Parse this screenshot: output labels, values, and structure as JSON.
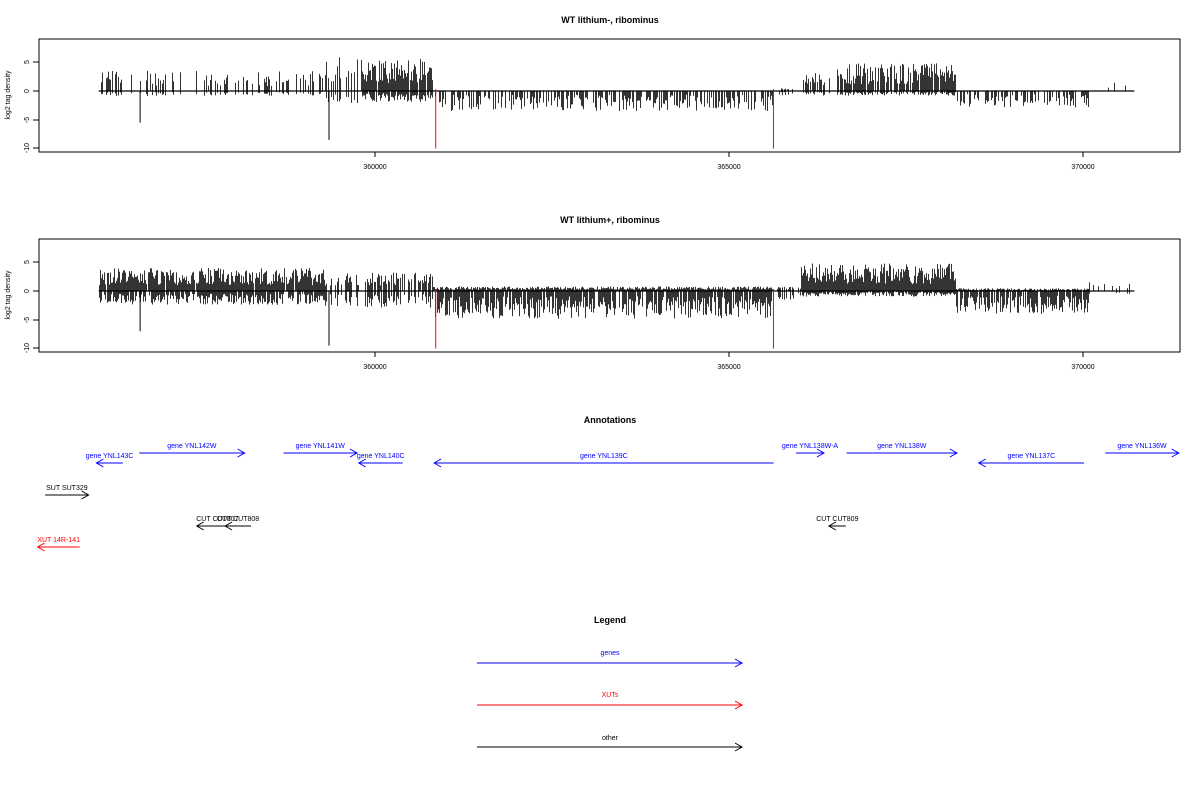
{
  "panels": [
    {
      "title": "WT lithium-, ribominus",
      "ylabel": "log2 tag density",
      "yticks": [
        "-10",
        "-5",
        "0",
        "5"
      ],
      "xticks": [
        "360000",
        "365000",
        "370000"
      ]
    },
    {
      "title": "WT lithium+, ribominus",
      "ylabel": "log2 tag density",
      "yticks": [
        "-10",
        "-5",
        "0",
        "5"
      ],
      "xticks": [
        "360000",
        "365000",
        "370000"
      ]
    }
  ],
  "annotations": {
    "title": "Annotations",
    "features": [
      {
        "label": "gene YNL143C",
        "class": "gene",
        "strand": "-",
        "start": 356068,
        "end": 356444
      },
      {
        "label": "gene YNL142W",
        "class": "gene",
        "strand": "+",
        "start": 356677,
        "end": 358178
      },
      {
        "label": "gene YNL141W",
        "class": "gene",
        "strand": "+",
        "start": 358733,
        "end": 359779
      },
      {
        "label": "gene YNL140C",
        "class": "gene",
        "strand": "-",
        "start": 359804,
        "end": 360429
      },
      {
        "label": "gene YNL139C",
        "class": "gene",
        "strand": "-",
        "start": 360878,
        "end": 365712
      },
      {
        "label": "gene YNL138W-A",
        "class": "gene",
        "strand": "+",
        "start": 366032,
        "end": 366429
      },
      {
        "label": "gene YNL138W",
        "class": "gene",
        "strand": "+",
        "start": 366751,
        "end": 368323
      },
      {
        "label": "gene YNL137C",
        "class": "gene",
        "strand": "-",
        "start": 368634,
        "end": 370133
      },
      {
        "label": "gene YNL136W",
        "class": "gene",
        "strand": "+",
        "start": 370436,
        "end": 371482
      },
      {
        "label": "SUT SUT329",
        "class": "other",
        "strand": "+",
        "start": 355338,
        "end": 355956
      },
      {
        "label": "CUT CUT807",
        "class": "other",
        "strand": "-",
        "start": 357496,
        "end": 358085
      },
      {
        "label": "CUT CUT808",
        "class": "other",
        "strand": "-",
        "start": 357900,
        "end": 358270
      },
      {
        "label": "CUT CUT809",
        "class": "other",
        "strand": "-",
        "start": 366500,
        "end": 366740
      },
      {
        "label": "XUT 14R-141",
        "class": "xut",
        "strand": "-",
        "start": 355230,
        "end": 355830
      }
    ]
  },
  "legend": {
    "title": "Legend",
    "items": [
      {
        "label": "genes",
        "color": "#0000ff"
      },
      {
        "label": "XUTs",
        "color": "#ff0000"
      },
      {
        "label": "other",
        "color": "#000000"
      }
    ]
  },
  "colors": {
    "gene": "#0000ff",
    "xut": "#ff0000",
    "other": "#000000",
    "peak": "#ff0000"
  },
  "chart_data": [
    {
      "type": "bar",
      "title": "WT lithium-, ribominus",
      "xlabel": "",
      "ylabel": "log2 tag density",
      "xlim": [
        355250,
        371500
      ],
      "ylim": [
        -10,
        8.5
      ],
      "data_range": [
        356100,
        370850
      ],
      "red_peaks": [
        {
          "x": 360900,
          "y": -10
        },
        {
          "x": 365710,
          "y": -10
        }
      ],
      "segments": [
        {
          "from": 356100,
          "to": 357400,
          "density": 0.25,
          "pos_mean": 2.2,
          "pos_max": 3.5,
          "neg_mean": 0.6,
          "neg_max": 2.0
        },
        {
          "from": 357400,
          "to": 359300,
          "density": 0.35,
          "pos_mean": 2.2,
          "pos_max": 3.8,
          "neg_mean": 0.5,
          "neg_max": 1.5
        },
        {
          "from": 359300,
          "to": 359850,
          "density": 0.45,
          "pos_mean": 4.0,
          "pos_max": 6.5,
          "neg_mean": 1.5,
          "neg_max": 4.0
        },
        {
          "from": 359850,
          "to": 360850,
          "density": 0.95,
          "pos_mean": 3.5,
          "pos_max": 6.0,
          "neg_mean": 1.2,
          "neg_max": 3.0
        },
        {
          "from": 360850,
          "to": 365700,
          "density": 0.7,
          "pos_mean": 0.0,
          "pos_max": 0.0,
          "neg_mean": 2.2,
          "neg_max": 4.5
        },
        {
          "from": 365700,
          "to": 366100,
          "density": 0.3,
          "pos_mean": 0.3,
          "pos_max": 1.0,
          "neg_mean": 0.5,
          "neg_max": 1.5
        },
        {
          "from": 366100,
          "to": 366600,
          "density": 0.4,
          "pos_mean": 2.0,
          "pos_max": 3.5,
          "neg_mean": 0.5,
          "neg_max": 1.5
        },
        {
          "from": 366600,
          "to": 368300,
          "density": 0.75,
          "pos_mean": 3.0,
          "pos_max": 6.0,
          "neg_mean": 0.5,
          "neg_max": 1.5
        },
        {
          "from": 368300,
          "to": 370200,
          "density": 0.6,
          "pos_mean": 0.0,
          "pos_max": 0.0,
          "neg_mean": 1.8,
          "neg_max": 3.5
        },
        {
          "from": 370200,
          "to": 370850,
          "density": 0.05,
          "pos_mean": 1.0,
          "pos_max": 2.0,
          "neg_mean": 0.0,
          "neg_max": 0.0
        }
      ],
      "spikes": [
        {
          "x": 359380,
          "y": -8.5
        },
        {
          "x": 356690,
          "y": -5.5
        }
      ]
    },
    {
      "type": "bar",
      "title": "WT lithium+, ribominus",
      "xlabel": "",
      "ylabel": "log2 tag density",
      "xlim": [
        355250,
        371500
      ],
      "ylim": [
        -10,
        8.5
      ],
      "data_range": [
        356100,
        370850
      ],
      "red_peaks": [
        {
          "x": 360900,
          "y": -10
        },
        {
          "x": 365710,
          "y": -10
        }
      ],
      "segments": [
        {
          "from": 356100,
          "to": 359300,
          "density": 0.95,
          "pos_mean": 2.5,
          "pos_max": 6.0,
          "neg_mean": 1.5,
          "neg_max": 4.5
        },
        {
          "from": 359300,
          "to": 360850,
          "density": 0.65,
          "pos_mean": 2.0,
          "pos_max": 4.0,
          "neg_mean": 1.8,
          "neg_max": 4.0
        },
        {
          "from": 360850,
          "to": 365700,
          "density": 1.0,
          "pos_mean": 0.5,
          "pos_max": 2.5,
          "neg_mean": 3.0,
          "neg_max": 6.5
        },
        {
          "from": 365700,
          "to": 366100,
          "density": 0.5,
          "pos_mean": 0.5,
          "pos_max": 1.5,
          "neg_mean": 1.0,
          "neg_max": 2.5
        },
        {
          "from": 366100,
          "to": 368300,
          "density": 1.0,
          "pos_mean": 3.0,
          "pos_max": 8.0,
          "neg_mean": 0.6,
          "neg_max": 2.0
        },
        {
          "from": 368300,
          "to": 370200,
          "density": 0.95,
          "pos_mean": 0.3,
          "pos_max": 1.0,
          "neg_mean": 2.5,
          "neg_max": 6.0
        },
        {
          "from": 370200,
          "to": 370850,
          "density": 0.2,
          "pos_mean": 1.2,
          "pos_max": 2.5,
          "neg_mean": 0.3,
          "neg_max": 1.0
        }
      ],
      "spikes": [
        {
          "x": 359380,
          "y": -9.5
        },
        {
          "x": 356690,
          "y": -7.0
        }
      ]
    }
  ]
}
